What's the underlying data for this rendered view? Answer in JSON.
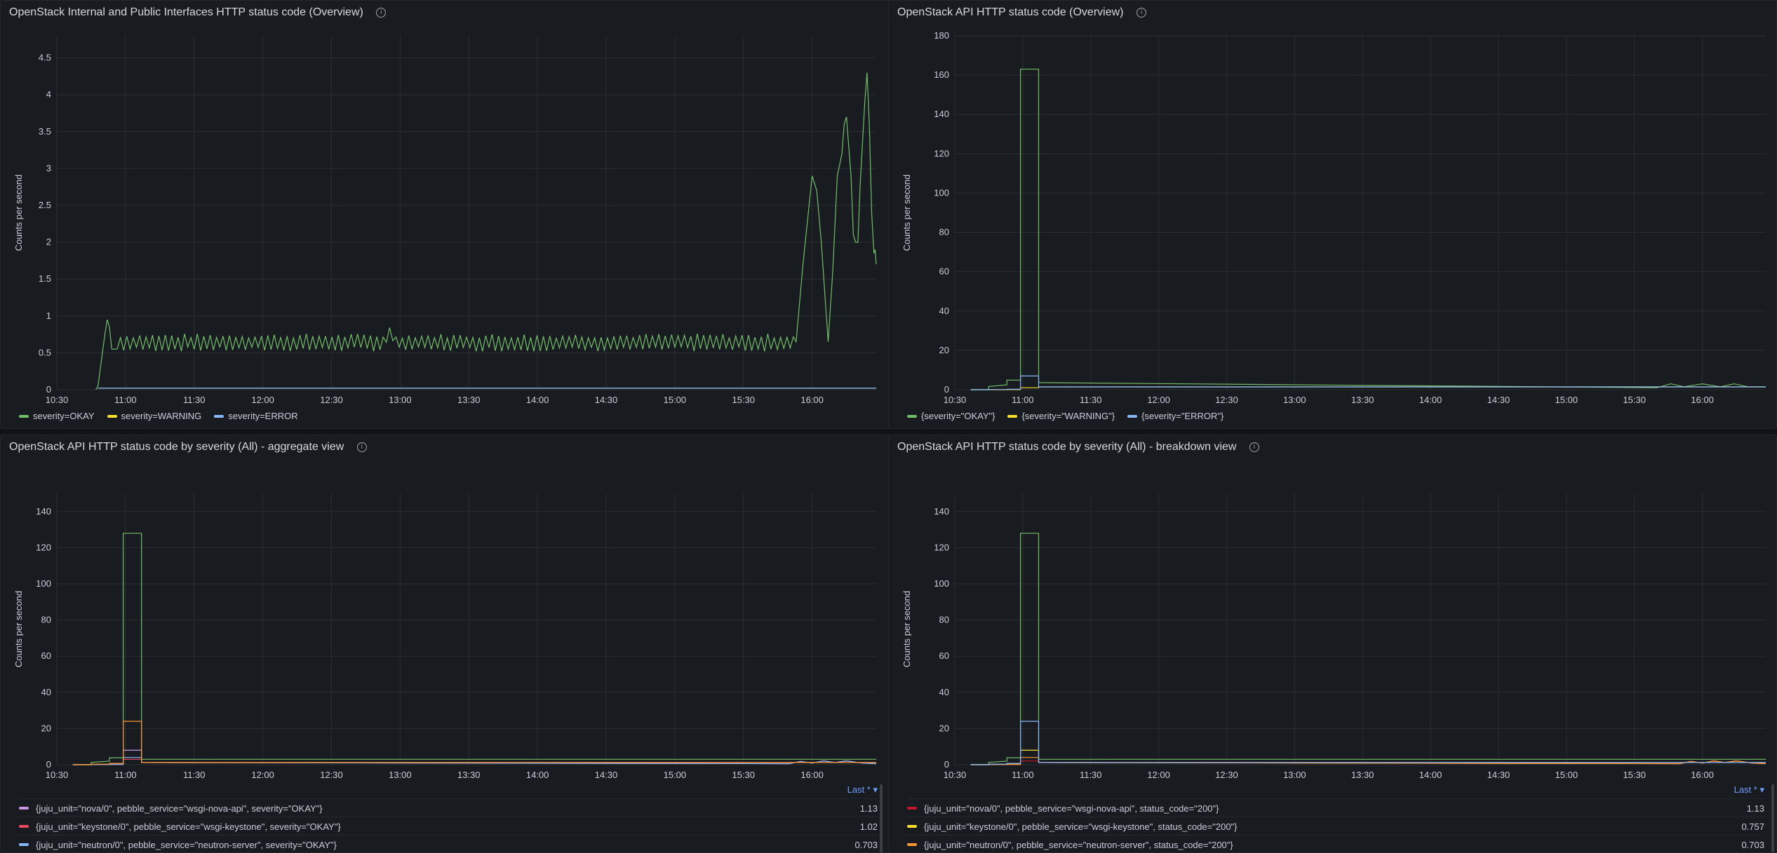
{
  "colors": {
    "green": "#73bf69",
    "yellow": "#fade2a",
    "blue": "#8ab8ff",
    "purple": "#ca95e5",
    "red": "#f2495c",
    "dark_red": "#c4162a",
    "orange": "#ff9830",
    "grid": "#2a2d33",
    "axis_text": "#ccccdc"
  },
  "panels": [
    {
      "title": "OpenStack Internal and Public Interfaces HTTP status code (Overview)",
      "info_icon": "info-icon",
      "chart_data": {
        "type": "line",
        "ylabel": "Counts per second",
        "ylim": [
          0,
          4.8
        ],
        "yticks": [
          "0",
          "0.5",
          "1",
          "1.5",
          "2",
          "2.5",
          "3",
          "3.5",
          "4",
          "4.5"
        ],
        "xlim": [
          "10:30",
          "16:28"
        ],
        "xticks": [
          "10:30",
          "11:00",
          "11:30",
          "12:00",
          "12:30",
          "13:00",
          "13:30",
          "14:00",
          "14:30",
          "15:00",
          "15:30",
          "16:00"
        ],
        "grid": true,
        "series": [
          {
            "name": "severity=OKAY",
            "color": "#73bf69",
            "profile": "okay_overview"
          },
          {
            "name": "severity=WARNING",
            "color": "#fade2a",
            "profile": "flat_small"
          },
          {
            "name": "severity=ERROR",
            "color": "#8ab8ff",
            "profile": "flat_small"
          }
        ]
      }
    },
    {
      "title": "OpenStack API HTTP status code (Overview)",
      "info_icon": "info-icon",
      "chart_data": {
        "type": "line",
        "ylabel": "Counts per second",
        "ylim": [
          0,
          180
        ],
        "yticks": [
          "0",
          "20",
          "40",
          "60",
          "80",
          "100",
          "120",
          "140",
          "160",
          "180"
        ],
        "xlim": [
          "10:30",
          "16:28"
        ],
        "xticks": [
          "10:30",
          "11:00",
          "11:30",
          "12:00",
          "12:30",
          "13:00",
          "13:30",
          "14:00",
          "14:30",
          "15:00",
          "15:30",
          "16:00"
        ],
        "grid": true,
        "series": [
          {
            "name": "{severity=\"OKAY\"}",
            "color": "#73bf69",
            "spike": 163
          },
          {
            "name": "{severity=\"WARNING\"}",
            "color": "#fade2a",
            "spike": 1
          },
          {
            "name": "{severity=\"ERROR\"}",
            "color": "#8ab8ff",
            "spike": 7
          }
        ]
      }
    },
    {
      "title": "OpenStack API HTTP status code by severity (All) - aggregate view",
      "info_icon": "info-icon",
      "chart_data": {
        "type": "line",
        "ylabel": "Counts per second",
        "ylim": [
          0,
          150
        ],
        "yticks": [
          "0",
          "20",
          "40",
          "60",
          "80",
          "100",
          "120",
          "140"
        ],
        "xlim": [
          "10:30",
          "16:28"
        ],
        "xticks": [
          "10:30",
          "11:00",
          "11:30",
          "12:00",
          "12:30",
          "13:00",
          "13:30",
          "14:00",
          "14:30",
          "15:00",
          "15:30",
          "16:00"
        ],
        "grid": true,
        "legend_header": "Last * ▾",
        "series": [
          {
            "name": "{juju_unit=\"nova/0\", pebble_service=\"wsgi-nova-api\", severity=\"OKAY\"}",
            "color": "#ca95e5",
            "last": "1.13",
            "spike": 8
          },
          {
            "name": "{juju_unit=\"keystone/0\", pebble_service=\"wsgi-keystone\", severity=\"OKAY\"}",
            "color": "#f2495c",
            "last": "1.02",
            "spike": 3
          },
          {
            "name": "{juju_unit=\"neutron/0\", pebble_service=\"neutron-server\", severity=\"OKAY\"}",
            "color": "#8ab8ff",
            "last": "0.703",
            "spike": 4
          },
          {
            "name": "",
            "color": "#73bf69",
            "spike": 128
          },
          {
            "name": "",
            "color": "#ff9830",
            "spike": 24
          }
        ]
      }
    },
    {
      "title": "OpenStack API HTTP status code by severity (All) - breakdown view",
      "info_icon": "info-icon",
      "chart_data": {
        "type": "line",
        "ylabel": "Counts per second",
        "ylim": [
          0,
          150
        ],
        "yticks": [
          "0",
          "20",
          "40",
          "60",
          "80",
          "100",
          "120",
          "140"
        ],
        "xlim": [
          "10:30",
          "16:28"
        ],
        "xticks": [
          "10:30",
          "11:00",
          "11:30",
          "12:00",
          "12:30",
          "13:00",
          "13:30",
          "14:00",
          "14:30",
          "15:00",
          "15:30",
          "16:00"
        ],
        "grid": true,
        "legend_header": "Last * ▾",
        "series": [
          {
            "name": "{juju_unit=\"nova/0\", pebble_service=\"wsgi-nova-api\", status_code=\"200\"}",
            "color": "#c4162a",
            "last": "1.13",
            "spike": 2
          },
          {
            "name": "{juju_unit=\"keystone/0\", pebble_service=\"wsgi-keystone\", status_code=\"200\"}",
            "color": "#fade2a",
            "last": "0.757",
            "spike": 8
          },
          {
            "name": "{juju_unit=\"neutron/0\", pebble_service=\"neutron-server\", status_code=\"200\"}",
            "color": "#ff9830",
            "last": "0.703",
            "spike": 4
          },
          {
            "name": "",
            "color": "#73bf69",
            "spike": 128
          },
          {
            "name": "",
            "color": "#8ab8ff",
            "spike": 24
          }
        ]
      }
    }
  ]
}
